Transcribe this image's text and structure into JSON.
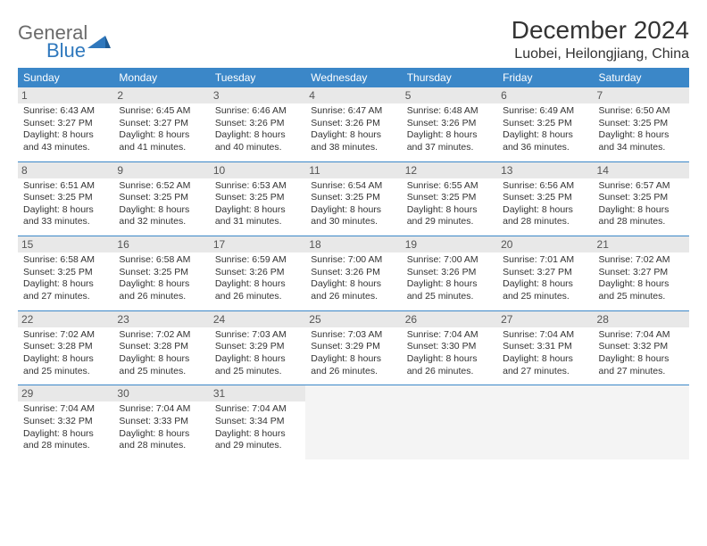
{
  "logo": {
    "general": "General",
    "blue": "Blue"
  },
  "title": "December 2024",
  "location": "Luobei, Heilongjiang, China",
  "colors": {
    "header_bg": "#3b87c8",
    "header_text": "#ffffff",
    "daynum_bg": "#e8e8e8",
    "cell_divider": "#3b87c8",
    "logo_gray": "#6b6b6b",
    "logo_blue": "#2f78bd",
    "text": "#333333",
    "empty_bg": "#f4f4f4",
    "page_bg": "#ffffff"
  },
  "weekdays": [
    "Sunday",
    "Monday",
    "Tuesday",
    "Wednesday",
    "Thursday",
    "Friday",
    "Saturday"
  ],
  "layout": {
    "first_weekday_index": 0,
    "days_in_month": 31
  },
  "days": {
    "1": {
      "sunrise": "Sunrise: 6:43 AM",
      "sunset": "Sunset: 3:27 PM",
      "day1": "Daylight: 8 hours",
      "day2": "and 43 minutes."
    },
    "2": {
      "sunrise": "Sunrise: 6:45 AM",
      "sunset": "Sunset: 3:27 PM",
      "day1": "Daylight: 8 hours",
      "day2": "and 41 minutes."
    },
    "3": {
      "sunrise": "Sunrise: 6:46 AM",
      "sunset": "Sunset: 3:26 PM",
      "day1": "Daylight: 8 hours",
      "day2": "and 40 minutes."
    },
    "4": {
      "sunrise": "Sunrise: 6:47 AM",
      "sunset": "Sunset: 3:26 PM",
      "day1": "Daylight: 8 hours",
      "day2": "and 38 minutes."
    },
    "5": {
      "sunrise": "Sunrise: 6:48 AM",
      "sunset": "Sunset: 3:26 PM",
      "day1": "Daylight: 8 hours",
      "day2": "and 37 minutes."
    },
    "6": {
      "sunrise": "Sunrise: 6:49 AM",
      "sunset": "Sunset: 3:25 PM",
      "day1": "Daylight: 8 hours",
      "day2": "and 36 minutes."
    },
    "7": {
      "sunrise": "Sunrise: 6:50 AM",
      "sunset": "Sunset: 3:25 PM",
      "day1": "Daylight: 8 hours",
      "day2": "and 34 minutes."
    },
    "8": {
      "sunrise": "Sunrise: 6:51 AM",
      "sunset": "Sunset: 3:25 PM",
      "day1": "Daylight: 8 hours",
      "day2": "and 33 minutes."
    },
    "9": {
      "sunrise": "Sunrise: 6:52 AM",
      "sunset": "Sunset: 3:25 PM",
      "day1": "Daylight: 8 hours",
      "day2": "and 32 minutes."
    },
    "10": {
      "sunrise": "Sunrise: 6:53 AM",
      "sunset": "Sunset: 3:25 PM",
      "day1": "Daylight: 8 hours",
      "day2": "and 31 minutes."
    },
    "11": {
      "sunrise": "Sunrise: 6:54 AM",
      "sunset": "Sunset: 3:25 PM",
      "day1": "Daylight: 8 hours",
      "day2": "and 30 minutes."
    },
    "12": {
      "sunrise": "Sunrise: 6:55 AM",
      "sunset": "Sunset: 3:25 PM",
      "day1": "Daylight: 8 hours",
      "day2": "and 29 minutes."
    },
    "13": {
      "sunrise": "Sunrise: 6:56 AM",
      "sunset": "Sunset: 3:25 PM",
      "day1": "Daylight: 8 hours",
      "day2": "and 28 minutes."
    },
    "14": {
      "sunrise": "Sunrise: 6:57 AM",
      "sunset": "Sunset: 3:25 PM",
      "day1": "Daylight: 8 hours",
      "day2": "and 28 minutes."
    },
    "15": {
      "sunrise": "Sunrise: 6:58 AM",
      "sunset": "Sunset: 3:25 PM",
      "day1": "Daylight: 8 hours",
      "day2": "and 27 minutes."
    },
    "16": {
      "sunrise": "Sunrise: 6:58 AM",
      "sunset": "Sunset: 3:25 PM",
      "day1": "Daylight: 8 hours",
      "day2": "and 26 minutes."
    },
    "17": {
      "sunrise": "Sunrise: 6:59 AM",
      "sunset": "Sunset: 3:26 PM",
      "day1": "Daylight: 8 hours",
      "day2": "and 26 minutes."
    },
    "18": {
      "sunrise": "Sunrise: 7:00 AM",
      "sunset": "Sunset: 3:26 PM",
      "day1": "Daylight: 8 hours",
      "day2": "and 26 minutes."
    },
    "19": {
      "sunrise": "Sunrise: 7:00 AM",
      "sunset": "Sunset: 3:26 PM",
      "day1": "Daylight: 8 hours",
      "day2": "and 25 minutes."
    },
    "20": {
      "sunrise": "Sunrise: 7:01 AM",
      "sunset": "Sunset: 3:27 PM",
      "day1": "Daylight: 8 hours",
      "day2": "and 25 minutes."
    },
    "21": {
      "sunrise": "Sunrise: 7:02 AM",
      "sunset": "Sunset: 3:27 PM",
      "day1": "Daylight: 8 hours",
      "day2": "and 25 minutes."
    },
    "22": {
      "sunrise": "Sunrise: 7:02 AM",
      "sunset": "Sunset: 3:28 PM",
      "day1": "Daylight: 8 hours",
      "day2": "and 25 minutes."
    },
    "23": {
      "sunrise": "Sunrise: 7:02 AM",
      "sunset": "Sunset: 3:28 PM",
      "day1": "Daylight: 8 hours",
      "day2": "and 25 minutes."
    },
    "24": {
      "sunrise": "Sunrise: 7:03 AM",
      "sunset": "Sunset: 3:29 PM",
      "day1": "Daylight: 8 hours",
      "day2": "and 25 minutes."
    },
    "25": {
      "sunrise": "Sunrise: 7:03 AM",
      "sunset": "Sunset: 3:29 PM",
      "day1": "Daylight: 8 hours",
      "day2": "and 26 minutes."
    },
    "26": {
      "sunrise": "Sunrise: 7:04 AM",
      "sunset": "Sunset: 3:30 PM",
      "day1": "Daylight: 8 hours",
      "day2": "and 26 minutes."
    },
    "27": {
      "sunrise": "Sunrise: 7:04 AM",
      "sunset": "Sunset: 3:31 PM",
      "day1": "Daylight: 8 hours",
      "day2": "and 27 minutes."
    },
    "28": {
      "sunrise": "Sunrise: 7:04 AM",
      "sunset": "Sunset: 3:32 PM",
      "day1": "Daylight: 8 hours",
      "day2": "and 27 minutes."
    },
    "29": {
      "sunrise": "Sunrise: 7:04 AM",
      "sunset": "Sunset: 3:32 PM",
      "day1": "Daylight: 8 hours",
      "day2": "and 28 minutes."
    },
    "30": {
      "sunrise": "Sunrise: 7:04 AM",
      "sunset": "Sunset: 3:33 PM",
      "day1": "Daylight: 8 hours",
      "day2": "and 28 minutes."
    },
    "31": {
      "sunrise": "Sunrise: 7:04 AM",
      "sunset": "Sunset: 3:34 PM",
      "day1": "Daylight: 8 hours",
      "day2": "and 29 minutes."
    }
  }
}
